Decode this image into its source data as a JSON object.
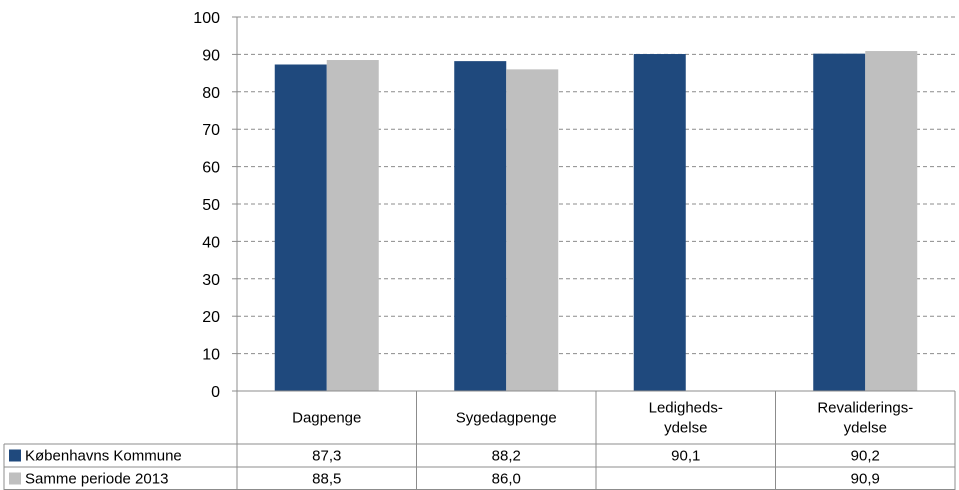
{
  "chart_data": {
    "type": "bar",
    "categories": [
      [
        "Dagpenge"
      ],
      [
        "Sygedagpenge"
      ],
      [
        "Ledigheds-",
        "ydelse"
      ],
      [
        "Revaliderings-",
        "ydelse"
      ]
    ],
    "series": [
      {
        "name": "Københavns Kommune",
        "color": "#1F497D",
        "values": [
          87.3,
          88.2,
          90.1,
          90.2
        ],
        "labels": [
          "87,3",
          "88,2",
          "90,1",
          "90,2"
        ]
      },
      {
        "name": "Samme periode 2013",
        "color": "#BFBFBF",
        "values": [
          88.5,
          86.0,
          null,
          90.9
        ],
        "labels": [
          "88,5",
          "86,0",
          "",
          "90,9"
        ]
      }
    ],
    "ylim": [
      0,
      100
    ],
    "yticks": [
      0,
      10,
      20,
      30,
      40,
      50,
      60,
      70,
      80,
      90,
      100
    ],
    "grid": true,
    "legend": "data-table"
  }
}
